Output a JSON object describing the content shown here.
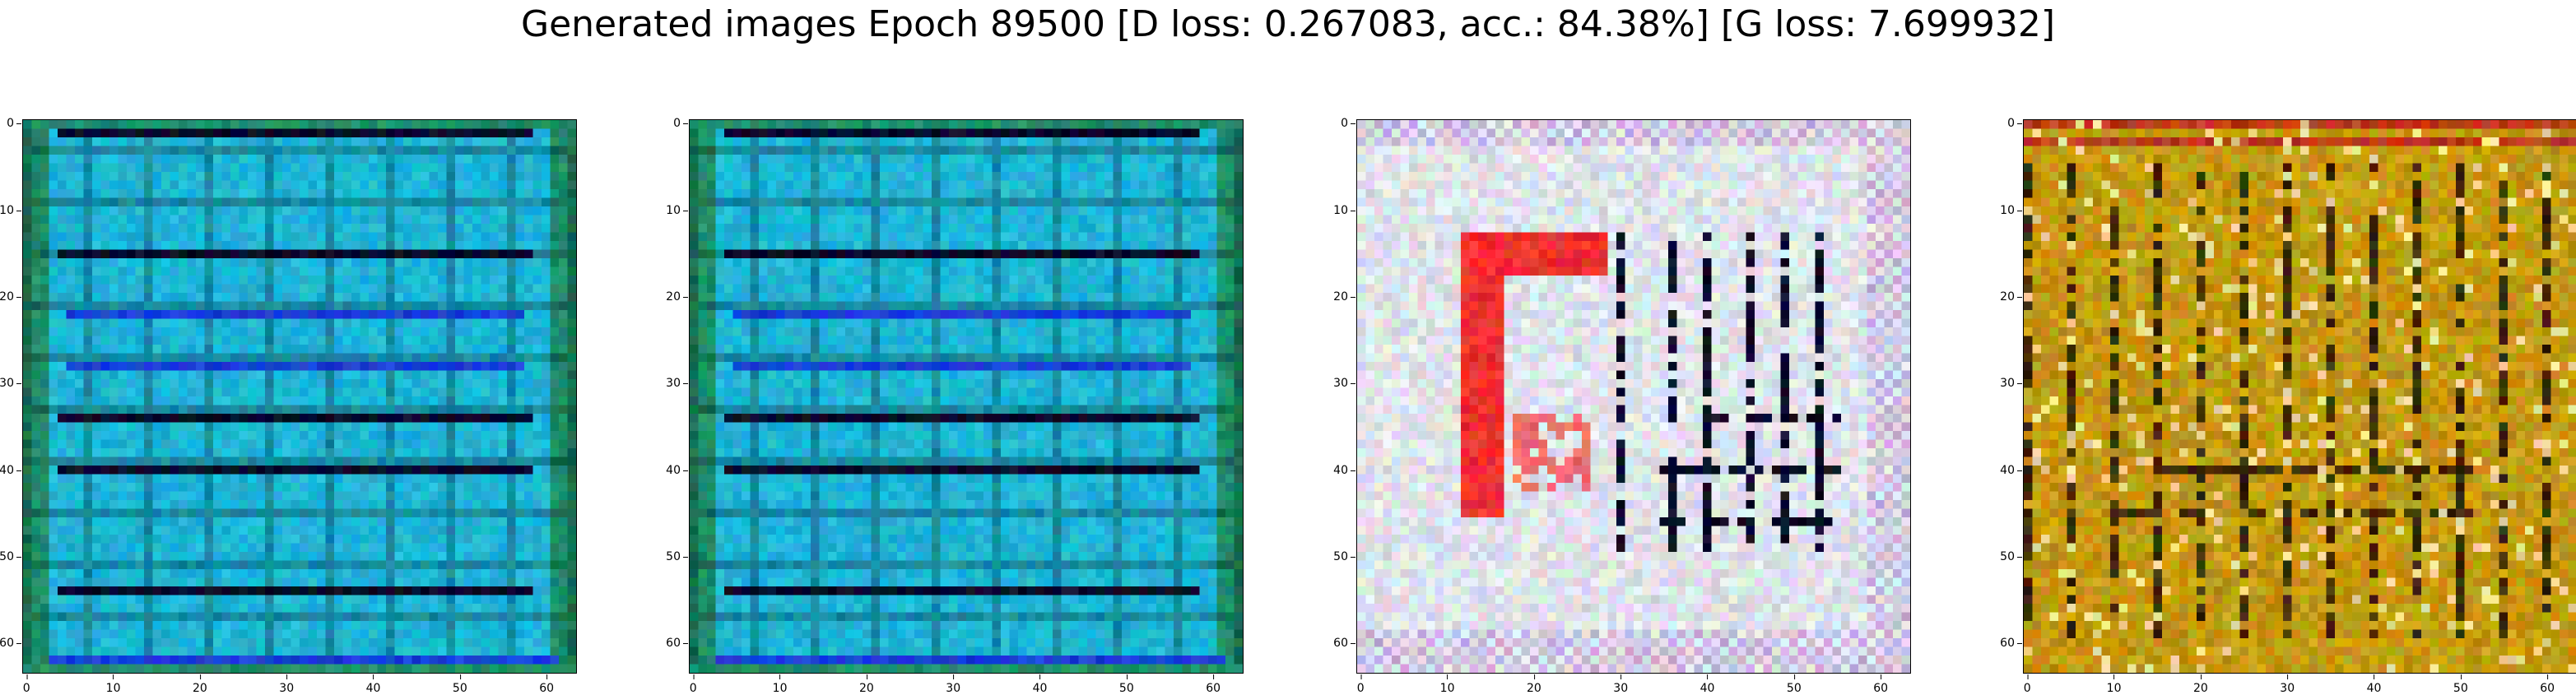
{
  "figure": {
    "title": "Generated images Epoch 89500 [D loss: 0.267083, acc.: 84.38%] [G loss: 7.699932]"
  },
  "panels": [
    {
      "name": "generated-image-1",
      "palette": "cyan-blue",
      "ticks": [
        "0",
        "10",
        "20",
        "30",
        "40",
        "50",
        "60"
      ]
    },
    {
      "name": "generated-image-2",
      "palette": "cyan-blue",
      "ticks": [
        "0",
        "10",
        "20",
        "30",
        "40",
        "50",
        "60"
      ]
    },
    {
      "name": "generated-image-3",
      "palette": "white-red",
      "ticks": [
        "0",
        "10",
        "20",
        "30",
        "40",
        "50",
        "60"
      ]
    },
    {
      "name": "generated-image-4",
      "palette": "ochre",
      "ticks": [
        "0",
        "10",
        "20",
        "30",
        "40",
        "50",
        "60"
      ]
    }
  ],
  "image_size": 64,
  "colors": {
    "cyan_base": "#1fb6d6",
    "blue_stripe": "#1a3fd8",
    "dark_stripe": "#0a0a2a",
    "green_edge": "#1f8f6a",
    "white_base": "#dfe3ea",
    "red_block": "#f03030",
    "ochre_base": "#c49a12",
    "ochre_dark": "#3a2a05"
  }
}
